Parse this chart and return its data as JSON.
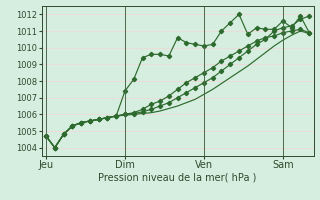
{
  "bg_color": "#d6eee0",
  "plot_bg_color": "#d6eee0",
  "grid_color": "#f0d8d8",
  "line_color": "#2d6a2d",
  "ylabel": "Pression niveau de la mer( hPa )",
  "ylim": [
    1003.5,
    1012.5
  ],
  "yticks": [
    1004,
    1005,
    1006,
    1007,
    1008,
    1009,
    1010,
    1011,
    1012
  ],
  "day_labels": [
    "Jeu",
    "Dim",
    "Ven",
    "Sam"
  ],
  "day_positions": [
    0,
    9,
    18,
    27
  ],
  "n_points": 31,
  "series1_x": [
    0,
    1,
    2,
    3,
    4,
    5,
    6,
    7,
    8,
    9,
    10,
    11,
    12,
    13,
    14,
    15,
    16,
    17,
    18,
    19,
    20,
    21,
    22,
    23,
    24,
    25,
    26,
    27,
    28,
    29,
    30
  ],
  "series1_y": [
    1004.7,
    1004.0,
    1004.8,
    1005.3,
    1005.5,
    1005.6,
    1005.7,
    1005.8,
    1005.9,
    1007.4,
    1008.1,
    1009.4,
    1009.6,
    1009.6,
    1009.5,
    1010.6,
    1010.3,
    1010.2,
    1010.1,
    1010.2,
    1011.0,
    1011.5,
    1012.0,
    1010.8,
    1011.2,
    1011.1,
    1011.1,
    1011.6,
    1011.2,
    1011.9,
    1010.9
  ],
  "series2_x": [
    0,
    1,
    2,
    3,
    4,
    5,
    6,
    7,
    8,
    9,
    10,
    11,
    12,
    13,
    14,
    15,
    16,
    17,
    18,
    19,
    20,
    21,
    22,
    23,
    24,
    25,
    26,
    27,
    28,
    29,
    30
  ],
  "series2_y": [
    1004.7,
    1004.0,
    1004.8,
    1005.3,
    1005.5,
    1005.6,
    1005.7,
    1005.8,
    1005.9,
    1006.0,
    1006.1,
    1006.3,
    1006.6,
    1006.8,
    1007.1,
    1007.5,
    1007.9,
    1008.2,
    1008.5,
    1008.8,
    1009.2,
    1009.5,
    1009.8,
    1010.1,
    1010.4,
    1010.6,
    1010.7,
    1010.9,
    1011.0,
    1011.1,
    1010.9
  ],
  "series3_x": [
    0,
    1,
    2,
    3,
    4,
    5,
    6,
    7,
    8,
    9,
    10,
    11,
    12,
    13,
    14,
    15,
    16,
    17,
    18,
    19,
    20,
    21,
    22,
    23,
    24,
    25,
    26,
    27,
    28,
    29,
    30
  ],
  "series3_y": [
    1004.7,
    1004.0,
    1004.8,
    1005.3,
    1005.5,
    1005.6,
    1005.7,
    1005.8,
    1005.9,
    1006.0,
    1006.05,
    1006.15,
    1006.3,
    1006.5,
    1006.7,
    1007.0,
    1007.3,
    1007.6,
    1007.9,
    1008.2,
    1008.6,
    1009.0,
    1009.4,
    1009.8,
    1010.2,
    1010.5,
    1011.0,
    1011.2,
    1011.3,
    1011.7,
    1011.9
  ],
  "series4_x": [
    0,
    1,
    2,
    3,
    4,
    5,
    6,
    7,
    8,
    9,
    10,
    11,
    12,
    13,
    14,
    15,
    16,
    17,
    18,
    19,
    20,
    21,
    22,
    23,
    24,
    25,
    26,
    27,
    28,
    29,
    30
  ],
  "series4_y": [
    1004.7,
    1004.0,
    1004.8,
    1005.3,
    1005.5,
    1005.6,
    1005.7,
    1005.8,
    1005.9,
    1005.95,
    1006.0,
    1006.05,
    1006.1,
    1006.2,
    1006.35,
    1006.5,
    1006.7,
    1006.9,
    1007.2,
    1007.5,
    1007.85,
    1008.2,
    1008.55,
    1008.9,
    1009.3,
    1009.7,
    1010.1,
    1010.45,
    1010.75,
    1011.0,
    1010.85
  ],
  "vline_color": "#4a6a4a",
  "tick_color": "#2d4a2d",
  "xlabel_fontsize": 7,
  "ytick_fontsize": 6,
  "xtick_fontsize": 7
}
